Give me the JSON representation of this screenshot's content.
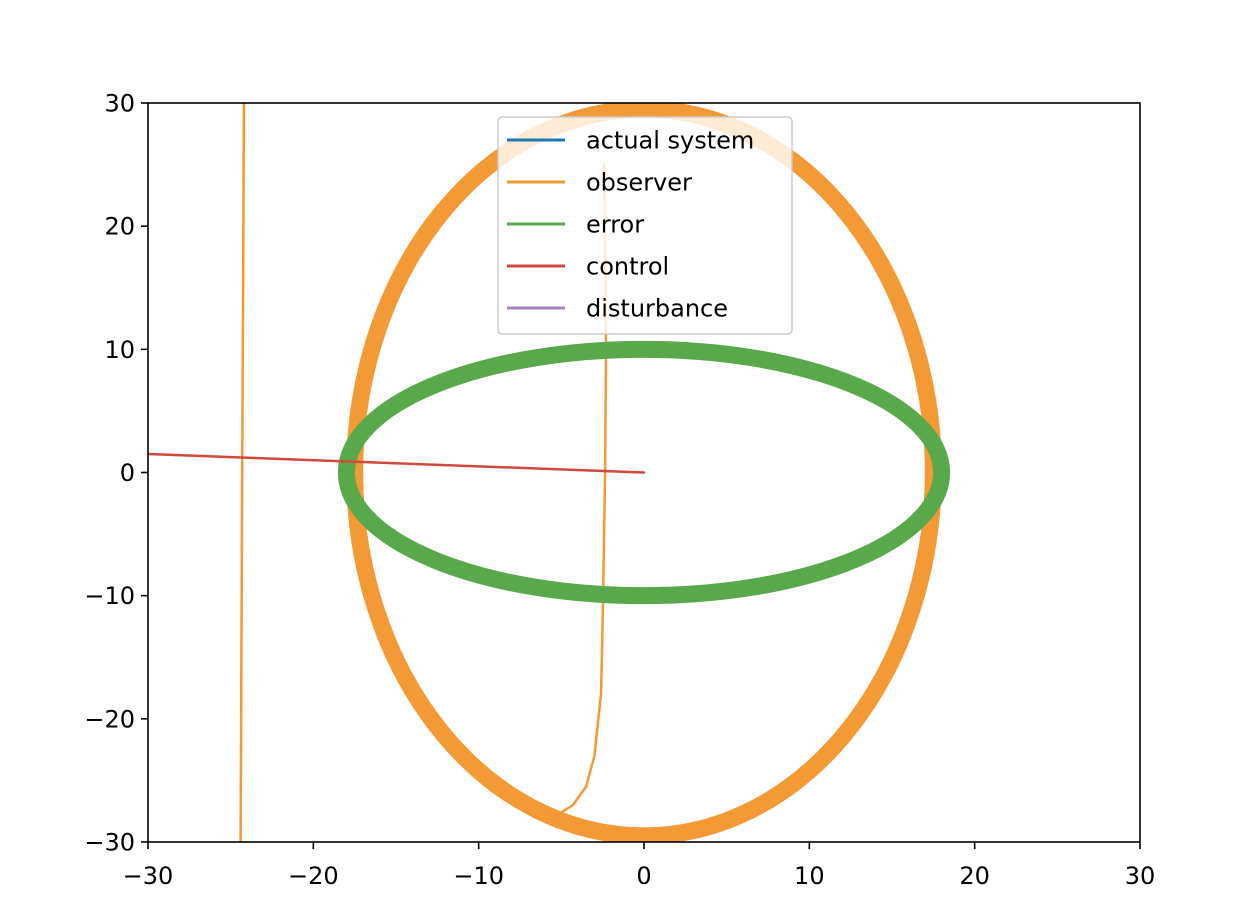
{
  "chart_data": {
    "type": "line",
    "xlim": [
      -30,
      30
    ],
    "ylim": [
      -30,
      30
    ],
    "x_ticks": [
      -30,
      -20,
      -10,
      0,
      10,
      20,
      30
    ],
    "y_ticks": [
      -30,
      -20,
      -10,
      0,
      10,
      20,
      30
    ],
    "x_tick_labels": [
      "−30",
      "−20",
      "−10",
      "0",
      "10",
      "20",
      "30"
    ],
    "y_tick_labels": [
      "−30",
      "−20",
      "−10",
      "0",
      "10",
      "20",
      "30"
    ],
    "grid": false,
    "legend_position": "upper center",
    "series": [
      {
        "name": "actual system",
        "color": "#1f77b4",
        "points": []
      },
      {
        "name": "observer",
        "color": "#f39935",
        "closed_curves": [
          {
            "shape": "ellipse",
            "center": [
              0,
              0
            ],
            "radius_x": 17.5,
            "radius_y": 29.5,
            "thick": true
          }
        ],
        "paths": [
          [
            [
              -24.2,
              30
            ],
            [
              -24.25,
              15
            ],
            [
              -24.3,
              0
            ],
            [
              -24.35,
              -15
            ],
            [
              -24.4,
              -30
            ]
          ],
          [
            [
              -2.4,
              25
            ],
            [
              -2.3,
              10
            ],
            [
              -2.35,
              0
            ],
            [
              -2.5,
              -12
            ],
            [
              -2.6,
              -18
            ],
            [
              -3.0,
              -23
            ],
            [
              -3.5,
              -25.5
            ],
            [
              -4.3,
              -27
            ],
            [
              -5.0,
              -27.6
            ],
            [
              -6.0,
              -28.0
            ]
          ]
        ]
      },
      {
        "name": "error",
        "color": "#59a84b",
        "closed_curves": [
          {
            "shape": "ellipse",
            "center": [
              0,
              0
            ],
            "radius_x": 18.0,
            "radius_y": 10.0,
            "thick": true
          }
        ]
      },
      {
        "name": "control",
        "color": "#cf4a3d",
        "paths": [
          [
            [
              -30,
              1.5
            ],
            [
              0,
              0
            ]
          ]
        ]
      },
      {
        "name": "disturbance",
        "color": "#a37fc3",
        "points": []
      }
    ]
  }
}
